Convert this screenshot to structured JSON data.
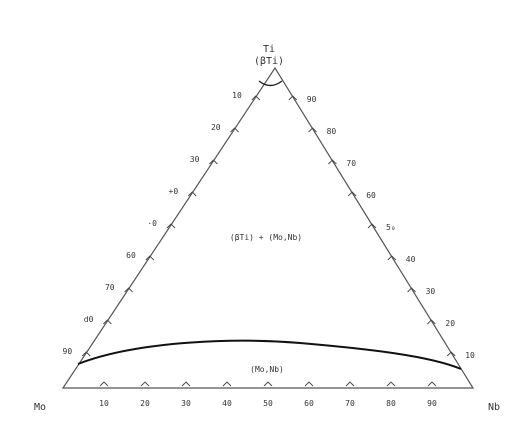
{
  "diagram": {
    "vertices": {
      "top": {
        "label": "Ti",
        "sublabel": "(βTi)"
      },
      "bottom_left": {
        "label": "Mo"
      },
      "bottom_right": {
        "label": "Nb"
      }
    },
    "left_edge_ticks": [
      "10",
      "20",
      "30",
      "+0",
      "·0",
      "60",
      "70",
      "d0",
      "90"
    ],
    "right_edge_ticks": [
      "90",
      "80",
      "70",
      "60",
      "5₀",
      "40",
      "30",
      "20",
      "10"
    ],
    "bottom_edge_ticks": [
      "10",
      "20",
      "30",
      "40",
      "50",
      "60",
      "70",
      "80",
      "90"
    ],
    "regions": {
      "upper": "(βTi) + (Mo,Nb)",
      "lower": "(Mo,Nb)"
    }
  }
}
